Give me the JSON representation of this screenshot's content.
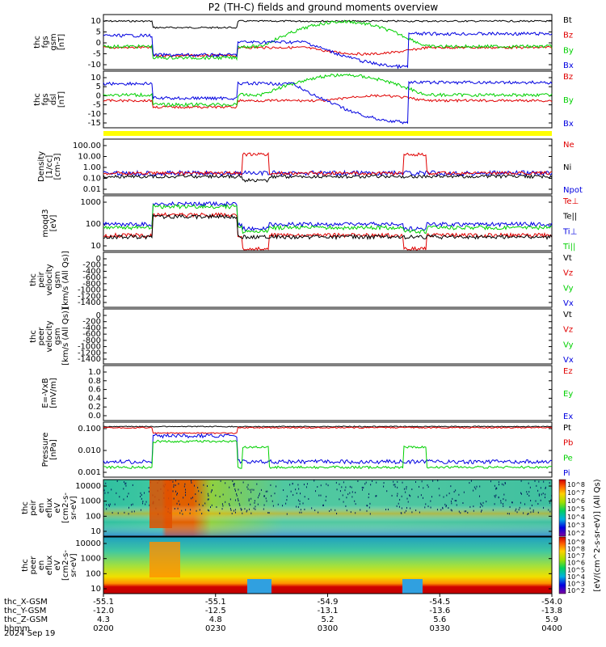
{
  "title": "P2 (TH-C) fields and ground moments overview",
  "date": "2024 Sep 19",
  "colors": {
    "black": "#000000",
    "red": "#e00000",
    "green": "#00d000",
    "blue": "#0000e0",
    "yellow": "#ffff00"
  },
  "panels": [
    {
      "id": "fgs-gsm",
      "ylabel": [
        "thc",
        "fgs",
        "gsm",
        "[nT]"
      ],
      "yticks": [
        "10",
        "5",
        "0",
        "-5",
        "-10"
      ],
      "ylim": [
        -10,
        13
      ],
      "scale": "linear",
      "legend": [
        {
          "text": "Bt",
          "color": "black"
        },
        {
          "text": "Bz",
          "color": "red"
        },
        {
          "text": "By",
          "color": "green"
        },
        {
          "text": "Bx",
          "color": "blue"
        }
      ]
    },
    {
      "id": "fgs-dsl",
      "ylabel": [
        "thc",
        "fgs",
        "dsl",
        "[nT]"
      ],
      "yticks": [
        "10",
        "5",
        "0",
        "-5",
        "-10",
        "-15"
      ],
      "ylim": [
        -17,
        12
      ],
      "scale": "linear",
      "legend": [
        {
          "text": "Bz",
          "color": "red"
        },
        {
          "text": "By",
          "color": "green"
        },
        {
          "text": "Bx",
          "color": "blue"
        }
      ]
    },
    {
      "id": "density",
      "ylabel": [
        "Density",
        "[1/cc]",
        "[cm-3]"
      ],
      "yticks": [
        "100.00",
        "10.00",
        "1.00",
        "0.10",
        "0.01"
      ],
      "ylim": [
        0.005,
        200
      ],
      "scale": "log",
      "legend": [
        {
          "text": "Ne",
          "color": "red"
        },
        {
          "text": "Ni",
          "color": "black"
        },
        {
          "text": "Npot",
          "color": "blue"
        }
      ]
    },
    {
      "id": "temperature",
      "ylabel": [
        "moqd3",
        "[eV]"
      ],
      "yticks": [
        "1000",
        "100",
        "10"
      ],
      "ylim": [
        6,
        6000
      ],
      "scale": "log",
      "legend": [
        {
          "text": "Te⊥",
          "color": "red"
        },
        {
          "text": "Te||",
          "color": "black"
        },
        {
          "text": "Ti⊥",
          "color": "blue"
        },
        {
          "text": "Ti||",
          "color": "green"
        }
      ]
    },
    {
      "id": "peir-velocity",
      "ylabel": [
        "thc",
        "peir",
        "velocity",
        "gsm",
        "[km/s (All Qs)]"
      ],
      "yticks": [
        "0",
        "-200",
        "-400",
        "-600",
        "-800",
        "-1000",
        "-1200",
        "-1400"
      ],
      "ylim": [
        -1500,
        0
      ],
      "scale": "linear",
      "legend": [
        {
          "text": "Vt",
          "color": "black"
        },
        {
          "text": "Vz",
          "color": "red"
        },
        {
          "text": "Vy",
          "color": "green"
        },
        {
          "text": "Vx",
          "color": "blue"
        }
      ]
    },
    {
      "id": "peer-velocity",
      "ylabel": [
        "thc",
        "peer",
        "velocity",
        "gsm",
        "[km/s (All Qs)]"
      ],
      "yticks": [
        "0",
        "-200",
        "-400",
        "-600",
        "-800",
        "-1000",
        "-1200",
        "-1400"
      ],
      "ylim": [
        -1500,
        0
      ],
      "scale": "linear",
      "legend": [
        {
          "text": "Vt",
          "color": "black"
        },
        {
          "text": "Vz",
          "color": "red"
        },
        {
          "text": "Vy",
          "color": "green"
        },
        {
          "text": "Vx",
          "color": "blue"
        }
      ]
    },
    {
      "id": "e-field",
      "ylabel": [
        "E=-VxB",
        "[mV/m]"
      ],
      "yticks": [
        "1.0",
        "0.8",
        "0.6",
        "0.4",
        "0.2",
        "0.0"
      ],
      "ylim": [
        0,
        1
      ],
      "scale": "linear",
      "legend": [
        {
          "text": "Ez",
          "color": "red"
        },
        {
          "text": "Ey",
          "color": "green"
        },
        {
          "text": "Ex",
          "color": "blue"
        }
      ]
    },
    {
      "id": "pressure",
      "ylabel": [
        "Pressure",
        "[nPa]"
      ],
      "yticks": [
        "0.100",
        "0.010",
        "0.001"
      ],
      "ylim": [
        0.0004,
        0.13
      ],
      "scale": "log",
      "legend": [
        {
          "text": "Pt",
          "color": "black"
        },
        {
          "text": "Pb",
          "color": "red"
        },
        {
          "text": "Pe",
          "color": "green"
        },
        {
          "text": "Pi",
          "color": "blue"
        }
      ]
    },
    {
      "id": "peir-spectrogram",
      "ylabel": [
        "thc",
        "peir",
        "en",
        "eflux",
        "eV",
        "[cm2-s-",
        "sr-eV]"
      ],
      "yticks": [
        "10000",
        "1000",
        "100",
        "10"
      ],
      "ylim": [
        5,
        20000
      ],
      "scale": "log"
    },
    {
      "id": "peer-spectrogram",
      "ylabel": [
        "thc",
        "peer",
        "en",
        "eflux",
        "eV",
        "[cm2-s-",
        "sr-eV]"
      ],
      "yticks": [
        "10000",
        "1000",
        "100",
        "10"
      ],
      "ylim": [
        5,
        20000
      ],
      "scale": "log"
    }
  ],
  "colorbar": {
    "label": "[eV/(cm^2-s-sr-eV)] (All Qs)",
    "ion_ticks": [
      "10^8",
      "10^7",
      "10^6",
      "10^5",
      "10^4",
      "10^3",
      "10^2"
    ],
    "electron_ticks": [
      "10^9",
      "10^8",
      "10^7",
      "10^6",
      "10^5",
      "10^4",
      "10^3",
      "10^2"
    ]
  },
  "xaxis": {
    "rows": [
      {
        "label": "thc_X-GSM",
        "values": [
          "-55.1",
          "-55.1",
          "-54.9",
          "-54.5",
          "-54.0"
        ]
      },
      {
        "label": "thc_Y-GSM",
        "values": [
          "-12.0",
          "-12.5",
          "-13.1",
          "-13.6",
          "-13.8"
        ]
      },
      {
        "label": "thc_Z-GSM",
        "values": [
          "4.3",
          "4.8",
          "5.2",
          "5.6",
          "5.9"
        ]
      },
      {
        "label": "hhmm",
        "values": [
          "0200",
          "0230",
          "0300",
          "0330",
          "0400"
        ]
      }
    ]
  },
  "chart_data": [
    {
      "type": "line",
      "title": "thc fgs gsm",
      "ylabel": "[nT]",
      "x": [
        "0200",
        "0230",
        "0300",
        "0330",
        "0400"
      ],
      "ylim": [
        -10,
        13
      ],
      "series": [
        {
          "name": "Bt",
          "values": [
            11,
            11,
            11.5,
            12,
            11
          ]
        },
        {
          "name": "Bz",
          "values": [
            -1,
            0,
            -1,
            -5,
            0
          ]
        },
        {
          "name": "By",
          "values": [
            1,
            2,
            4,
            6,
            2
          ]
        },
        {
          "name": "Bx",
          "values": [
            1,
            5,
            8,
            -10,
            7
          ]
        }
      ]
    },
    {
      "type": "line",
      "title": "thc fgs dsl",
      "ylabel": "[nT]",
      "x": [
        "0200",
        "0230",
        "0300",
        "0330",
        "0400"
      ],
      "ylim": [
        -17,
        12
      ],
      "series": [
        {
          "name": "Bz",
          "values": [
            -1,
            -1,
            0,
            -5,
            0
          ]
        },
        {
          "name": "By",
          "values": [
            1,
            2,
            6,
            5,
            2
          ]
        },
        {
          "name": "Bx",
          "values": [
            2,
            5,
            5,
            -15,
            6
          ]
        }
      ]
    },
    {
      "type": "line",
      "title": "Density",
      "ylabel": "[1/cc] [cm-3]",
      "x": [
        "0200",
        "0230",
        "0300",
        "0330",
        "0400"
      ],
      "ylim": [
        0.005,
        200
      ],
      "series": [
        {
          "name": "Ne",
          "values": [
            0.1,
            0.15,
            0.12,
            0.1,
            0.2
          ]
        },
        {
          "name": "Ni",
          "values": [
            0.05,
            0.1,
            0.08,
            0.06,
            0.15
          ]
        },
        {
          "name": "Npot",
          "values": [
            0.15,
            0.2,
            0.1,
            0.1,
            0.3
          ]
        }
      ]
    },
    {
      "type": "line",
      "title": "moqd3",
      "ylabel": "[eV]",
      "x": [
        "0200",
        "0230",
        "0300",
        "0330",
        "0400"
      ],
      "ylim": [
        6,
        6000
      ],
      "series": [
        {
          "name": "Te⊥",
          "values": [
            50,
            200,
            60,
            40,
            60
          ]
        },
        {
          "name": "Te||",
          "values": [
            40,
            150,
            50,
            30,
            50
          ]
        },
        {
          "name": "Ti⊥",
          "values": [
            150,
            500,
            200,
            150,
            200
          ]
        },
        {
          "name": "Ti||",
          "values": [
            120,
            400,
            150,
            120,
            150
          ]
        }
      ]
    },
    {
      "type": "line",
      "title": "Pressure",
      "ylabel": "[nPa]",
      "x": [
        "0200",
        "0230",
        "0300",
        "0330",
        "0400"
      ],
      "ylim": [
        0.0004,
        0.13
      ],
      "series": [
        {
          "name": "Pt",
          "values": [
            0.07,
            0.08,
            0.07,
            0.06,
            0.055
          ]
        },
        {
          "name": "Pb",
          "values": [
            0.06,
            0.07,
            0.065,
            0.055,
            0.05
          ]
        },
        {
          "name": "Pe",
          "values": [
            0.001,
            0.002,
            0.0012,
            0.001,
            0.0012
          ]
        },
        {
          "name": "Pi",
          "values": [
            0.002,
            0.01,
            0.002,
            0.002,
            0.004
          ]
        }
      ]
    },
    {
      "type": "heatmap",
      "title": "thc peir en eflux",
      "ylabel": "eV",
      "ylim": [
        5,
        20000
      ]
    },
    {
      "type": "heatmap",
      "title": "thc peer en eflux",
      "ylabel": "eV",
      "ylim": [
        5,
        20000
      ]
    }
  ]
}
